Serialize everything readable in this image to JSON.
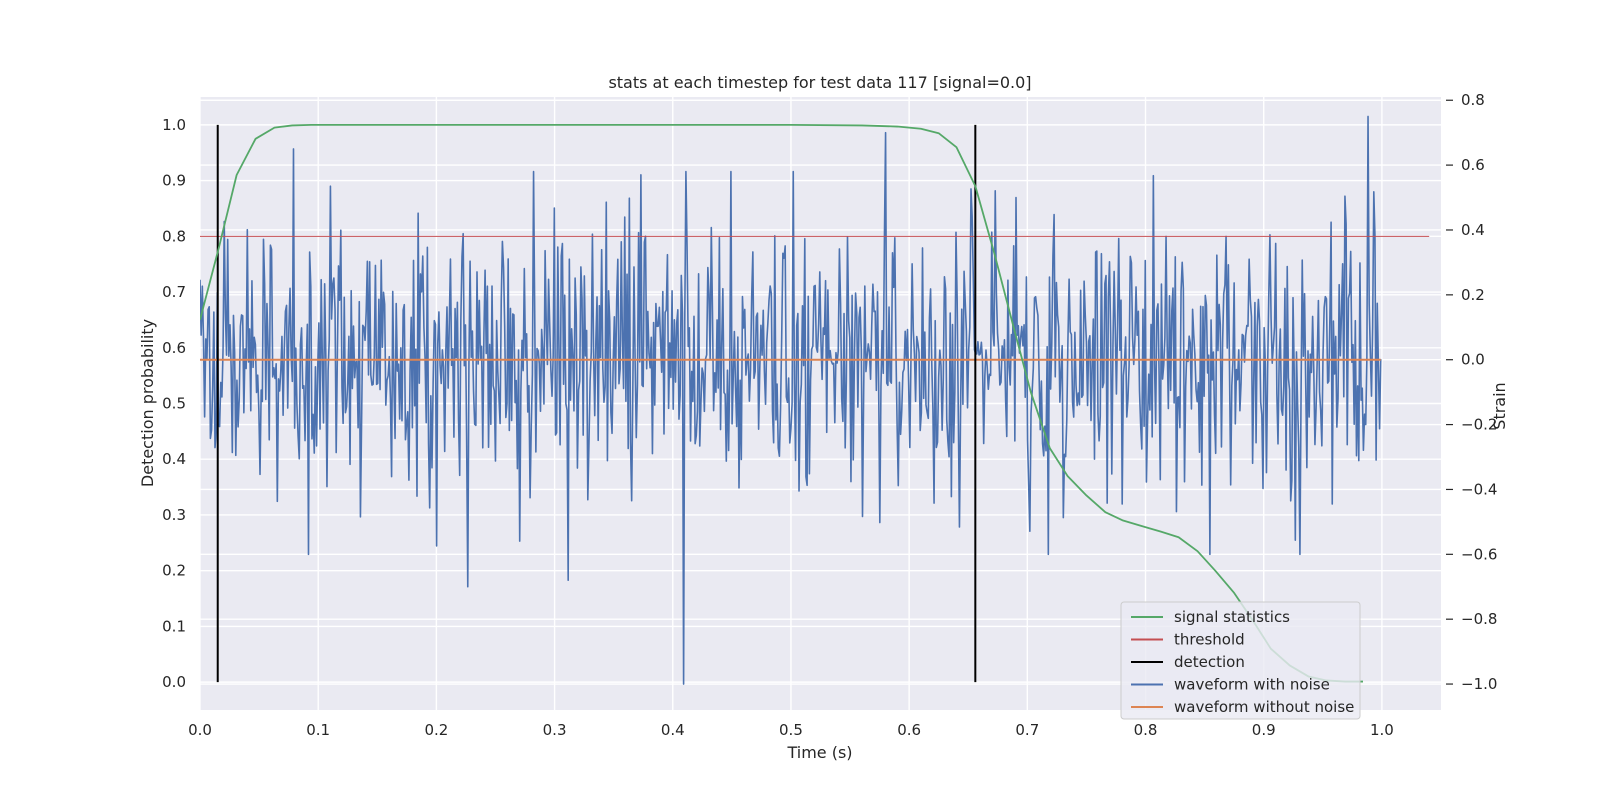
{
  "chart_data": {
    "type": "line",
    "title": "stats at each timestep for test data 117 [signal=0.0]",
    "xlabel": "Time (s)",
    "ylabel": "Detection probability",
    "y2label": "Strain",
    "xlim": [
      0.0,
      1.05
    ],
    "ylim": [
      -0.05,
      1.05
    ],
    "y2lim": [
      -1.08,
      0.81
    ],
    "x_ticks": [
      "0.0",
      "0.1",
      "0.2",
      "0.3",
      "0.4",
      "0.5",
      "0.6",
      "0.7",
      "0.8",
      "0.9",
      "1.0"
    ],
    "y_ticks": [
      "0.0",
      "0.1",
      "0.2",
      "0.3",
      "0.4",
      "0.5",
      "0.6",
      "0.7",
      "0.8",
      "0.9",
      "1.0"
    ],
    "y2_ticks": [
      "−1.0",
      "−0.8",
      "−0.6",
      "−0.4",
      "−0.2",
      "0.0",
      "0.2",
      "0.4",
      "0.6",
      "0.8"
    ],
    "grid": true,
    "legend_position": "lower-right",
    "series": [
      {
        "name": "signal statistics",
        "color": "#55a868",
        "axis": "left",
        "x": [
          0.0,
          0.016,
          0.031,
          0.047,
          0.063,
          0.078,
          0.094,
          0.2,
          0.3,
          0.4,
          0.5,
          0.56,
          0.59,
          0.61,
          0.625,
          0.64,
          0.656,
          0.672,
          0.688,
          0.703,
          0.719,
          0.734,
          0.75,
          0.766,
          0.781,
          0.797,
          0.813,
          0.828,
          0.844,
          0.859,
          0.875,
          0.891,
          0.906,
          0.922,
          0.938,
          0.953,
          0.969,
          0.984
        ],
        "y": [
          0.65,
          0.78,
          0.91,
          0.975,
          0.995,
          0.999,
          1.0,
          1.0,
          1.0,
          1.0,
          1.0,
          0.999,
          0.997,
          0.993,
          0.985,
          0.96,
          0.89,
          0.77,
          0.64,
          0.52,
          0.42,
          0.37,
          0.335,
          0.305,
          0.29,
          0.28,
          0.27,
          0.26,
          0.235,
          0.2,
          0.16,
          0.11,
          0.06,
          0.03,
          0.01,
          0.003,
          0.001,
          0.001
        ]
      },
      {
        "name": "threshold",
        "color": "#c44e52",
        "axis": "left",
        "x": [
          0.0,
          1.04
        ],
        "y": [
          0.8,
          0.8
        ]
      },
      {
        "name": "detection",
        "color": "#000000",
        "axis": "left",
        "type": "vlines",
        "x": [
          0.015,
          0.656
        ],
        "ymin": 0.0,
        "ymax": 1.0
      },
      {
        "name": "waveform with noise",
        "color": "#4c72b0",
        "axis": "right",
        "noise": {
          "samples": 1024,
          "sigma": 0.2,
          "x_start": 0.0,
          "x_end": 0.999,
          "seed": 117
        },
        "peaks": [
          {
            "x": 0.079,
            "y": 0.65
          },
          {
            "x": 0.227,
            "y": -0.7
          },
          {
            "x": 0.312,
            "y": -0.68
          },
          {
            "x": 0.373,
            "y": 0.57
          },
          {
            "x": 0.409,
            "y": -1.0
          },
          {
            "x": 0.58,
            "y": 0.7
          },
          {
            "x": 0.988,
            "y": 0.75
          }
        ]
      },
      {
        "name": "waveform without noise",
        "color": "#dd8452",
        "axis": "right",
        "x": [
          0.0,
          0.999
        ],
        "y": [
          0.0,
          0.0
        ]
      }
    ]
  }
}
